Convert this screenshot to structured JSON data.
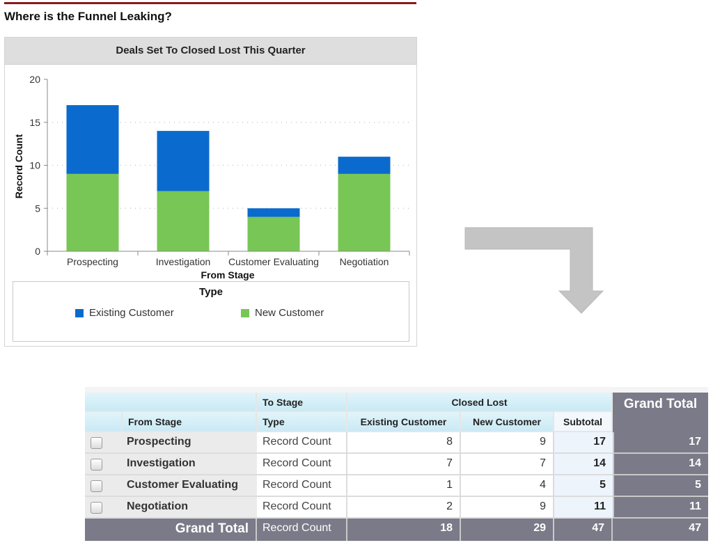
{
  "page": {
    "title": "Where is the Funnel Leaking?",
    "accent_rule_color": "#8b1a1a"
  },
  "chart_panel": {
    "title": "Deals Set To Closed Lost This Quarter"
  },
  "chart_data": {
    "type": "bar",
    "stacked": true,
    "title": "Deals Set To Closed Lost This Quarter",
    "xlabel": "From Stage",
    "ylabel": "Record Count",
    "categories": [
      "Prospecting",
      "Investigation",
      "Customer Evaluating",
      "Negotiation"
    ],
    "series": [
      {
        "name": "New Customer",
        "color": "#78c655",
        "values": [
          9,
          7,
          4,
          9
        ]
      },
      {
        "name": "Existing Customer",
        "color": "#0b6acd",
        "values": [
          8,
          7,
          1,
          2
        ]
      }
    ],
    "ylim": [
      0,
      20
    ],
    "yticks": [
      0,
      5,
      10,
      15,
      20
    ],
    "grid": "horizontal dotted",
    "legend": {
      "title": "Type",
      "position": "bottom",
      "entries": [
        "Existing Customer",
        "New Customer"
      ]
    }
  },
  "legend": {
    "title": "Type",
    "items": [
      {
        "label": "Existing Customer",
        "color": "#0b6acd"
      },
      {
        "label": "New Customer",
        "color": "#78c655"
      }
    ]
  },
  "arrow": {
    "color": "#c4c4c4",
    "icon": "bent-arrow-down-icon"
  },
  "pivot_table": {
    "header_row1": {
      "to_stage": "To Stage",
      "group": "Closed Lost",
      "grand_total": "Grand Total"
    },
    "header_row2": {
      "from_stage": "From Stage",
      "type": "Type",
      "existing": "Existing Customer",
      "new": "New Customer",
      "subtotal": "Subtotal"
    },
    "rows": [
      {
        "stage": "Prospecting",
        "type": "Record Count",
        "existing": "8",
        "new": "9",
        "subtotal": "17",
        "grand_total": "17"
      },
      {
        "stage": "Investigation",
        "type": "Record Count",
        "existing": "7",
        "new": "7",
        "subtotal": "14",
        "grand_total": "14"
      },
      {
        "stage": "Customer Evaluating",
        "type": "Record Count",
        "existing": "1",
        "new": "4",
        "subtotal": "5",
        "grand_total": "5"
      },
      {
        "stage": "Negotiation",
        "type": "Record Count",
        "existing": "2",
        "new": "9",
        "subtotal": "11",
        "grand_total": "11"
      }
    ],
    "totals": {
      "label": "Grand Total",
      "type": "Record Count",
      "existing": "18",
      "new": "29",
      "subtotal": "47",
      "grand_total": "47"
    }
  }
}
